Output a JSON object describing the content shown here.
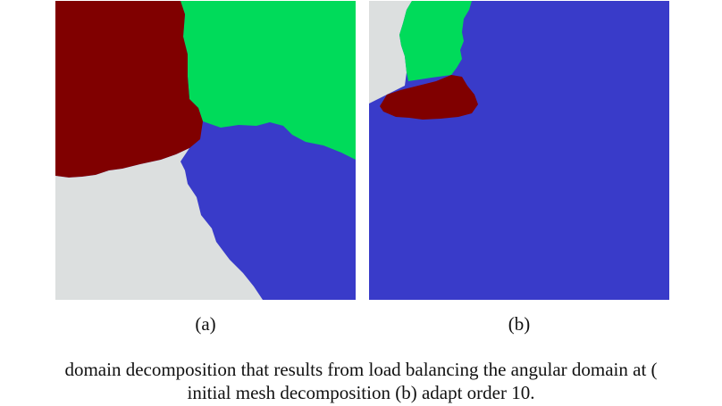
{
  "figure": {
    "colors": {
      "dark_red": "#800000",
      "green": "#00DB5A",
      "blue": "#393BC9",
      "light_gray": "#DCDFDF"
    },
    "panels": [
      {
        "id": "a",
        "label": "(a)"
      },
      {
        "id": "b",
        "label": "(b)"
      }
    ],
    "caption": {
      "line1": "domain decomposition that results from load balancing the angular domain at (",
      "line2": "initial mesh decomposition (b) adapt order 10."
    }
  }
}
